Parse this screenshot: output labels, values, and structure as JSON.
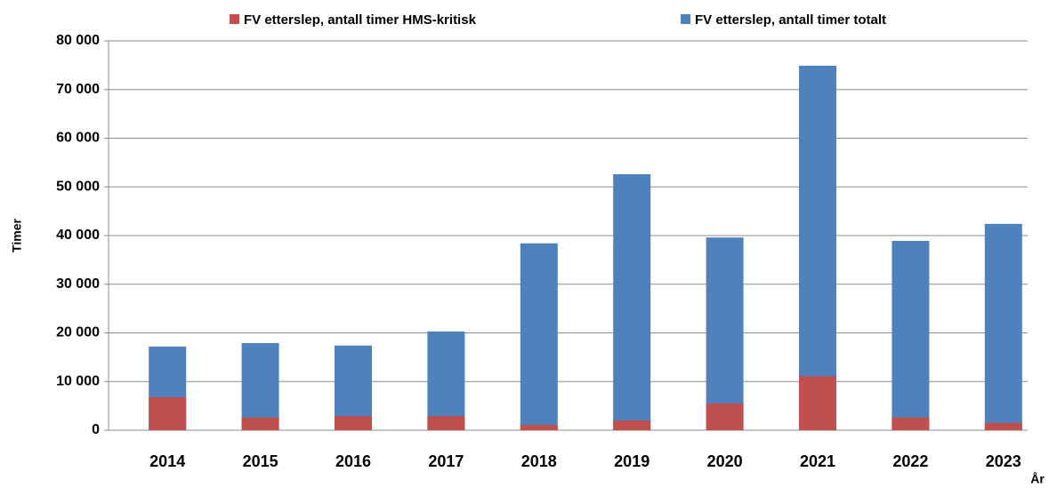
{
  "chart_data": {
    "type": "bar",
    "overlap": true,
    "x_label": "År",
    "y_label": "Timer",
    "categories": [
      "2014",
      "2015",
      "2016",
      "2017",
      "2018",
      "2019",
      "2020",
      "2021",
      "2022",
      "2023"
    ],
    "series": [
      {
        "name": "FV etterslep, antall timer totalt",
        "color": "#4f81bd",
        "values": [
          17200,
          17900,
          17400,
          20300,
          38400,
          52600,
          39600,
          74900,
          38900,
          42400
        ]
      },
      {
        "name": "FV etterslep, antall timer HMS-kritisk",
        "color": "#c0504d",
        "values": [
          6800,
          2600,
          2900,
          2900,
          1100,
          2000,
          5500,
          11100,
          2600,
          1500
        ]
      }
    ],
    "legend_order": [
      1,
      0
    ],
    "ylim": [
      0,
      80000
    ],
    "yticks": [
      0,
      {
        "value": 10000,
        "label": "10 000"
      },
      {
        "value": 20000,
        "label": "20 000"
      },
      {
        "value": 30000,
        "label": "30 000"
      },
      {
        "value": 40000,
        "label": "40 000"
      },
      {
        "value": 50000,
        "label": "50 000"
      },
      {
        "value": 60000,
        "label": "60 000"
      },
      {
        "value": 70000,
        "label": "70 000"
      },
      {
        "value": 80000,
        "label": "80 000"
      }
    ],
    "grid": true
  }
}
